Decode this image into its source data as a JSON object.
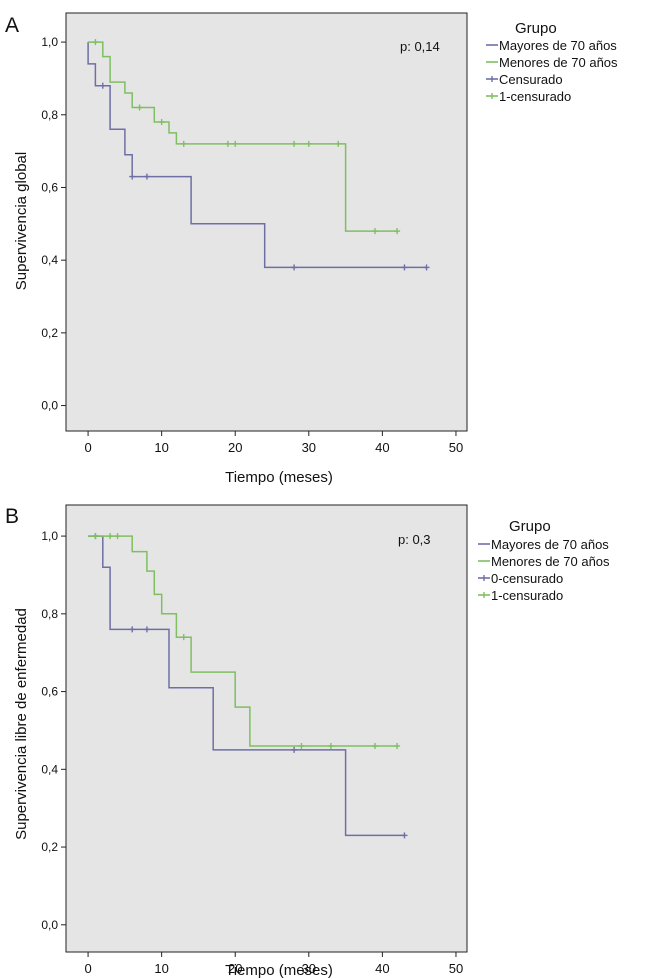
{
  "colors": {
    "plot_bg": "#e5e5e5",
    "frame": "#222222",
    "mayores": "#6f6fa6",
    "menores": "#7fbf62"
  },
  "chart_data": [
    {
      "type": "line",
      "panel_label": "A",
      "title": "",
      "xlabel": "Tiempo (meses)",
      "ylabel": "Supervivencia global",
      "xlim": [
        -3,
        51.5
      ],
      "ylim": [
        -0.07,
        1.08
      ],
      "xticks": [
        0,
        10,
        20,
        30,
        40,
        50
      ],
      "xtick_labels": [
        "0",
        "10",
        "20",
        "30",
        "40",
        "50"
      ],
      "yticks": [
        0.0,
        0.2,
        0.4,
        0.6,
        0.8,
        1.0
      ],
      "ytick_labels": [
        "0,0",
        "0,2",
        "0,4",
        "0,6",
        "0,8",
        "1,0"
      ],
      "annotation": "p: 0,14",
      "grid": false,
      "legend": {
        "title": "Grupo",
        "placement": "outside-right",
        "entries": [
          "Mayores de 70 años",
          "Menores de 70 años",
          "Censurado",
          "1-censurado"
        ]
      },
      "series": [
        {
          "name": "Mayores de 70 años",
          "color": "#6f6fa6",
          "step": [
            [
              0,
              1.0
            ],
            [
              0,
              0.94
            ],
            [
              1,
              0.94
            ],
            [
              1,
              0.88
            ],
            [
              3,
              0.88
            ],
            [
              3,
              0.76
            ],
            [
              5,
              0.76
            ],
            [
              5,
              0.69
            ],
            [
              6,
              0.69
            ],
            [
              6,
              0.63
            ],
            [
              14,
              0.63
            ],
            [
              14,
              0.5
            ],
            [
              24,
              0.5
            ],
            [
              24,
              0.38
            ],
            [
              46,
              0.38
            ]
          ],
          "censored": [
            [
              2,
              0.88
            ],
            [
              6,
              0.63
            ],
            [
              8,
              0.63
            ],
            [
              28,
              0.38
            ],
            [
              43,
              0.38
            ],
            [
              46,
              0.38
            ]
          ]
        },
        {
          "name": "Menores de 70 años",
          "color": "#7fbf62",
          "step": [
            [
              0,
              1.0
            ],
            [
              2,
              1.0
            ],
            [
              2,
              0.96
            ],
            [
              3,
              0.96
            ],
            [
              3,
              0.89
            ],
            [
              5,
              0.89
            ],
            [
              5,
              0.86
            ],
            [
              6,
              0.86
            ],
            [
              6,
              0.82
            ],
            [
              9,
              0.82
            ],
            [
              9,
              0.78
            ],
            [
              11,
              0.78
            ],
            [
              11,
              0.75
            ],
            [
              12,
              0.75
            ],
            [
              12,
              0.72
            ],
            [
              35,
              0.72
            ],
            [
              35,
              0.48
            ],
            [
              42,
              0.48
            ]
          ],
          "censored": [
            [
              1,
              1.0
            ],
            [
              7,
              0.82
            ],
            [
              10,
              0.78
            ],
            [
              13,
              0.72
            ],
            [
              19,
              0.72
            ],
            [
              20,
              0.72
            ],
            [
              28,
              0.72
            ],
            [
              30,
              0.72
            ],
            [
              34,
              0.72
            ],
            [
              39,
              0.48
            ],
            [
              42,
              0.48
            ]
          ]
        }
      ]
    },
    {
      "type": "line",
      "panel_label": "B",
      "title": "",
      "xlabel": "Tiempo (meses)",
      "ylabel": "Supervivencia libre de enfermedad",
      "xlim": [
        -3,
        51.5
      ],
      "ylim": [
        -0.07,
        1.08
      ],
      "xticks": [
        0,
        10,
        20,
        30,
        40,
        50
      ],
      "xtick_labels": [
        "0",
        "10",
        "20",
        "30",
        "40",
        "50"
      ],
      "yticks": [
        0.0,
        0.2,
        0.4,
        0.6,
        0.8,
        1.0
      ],
      "ytick_labels": [
        "0,0",
        "0,2",
        "0,4",
        "0,6",
        "0,8",
        "1,0"
      ],
      "annotation": "p: 0,3",
      "grid": false,
      "legend": {
        "title": "Grupo",
        "placement": "outside-right",
        "entries": [
          "Mayores de 70 años",
          "Menores de 70 años",
          "0-censurado",
          "1-censurado"
        ]
      },
      "series": [
        {
          "name": "Mayores de 70 años",
          "color": "#6f6fa6",
          "step": [
            [
              0,
              1.0
            ],
            [
              2,
              1.0
            ],
            [
              2,
              0.92
            ],
            [
              3,
              0.92
            ],
            [
              3,
              0.76
            ],
            [
              11,
              0.76
            ],
            [
              11,
              0.61
            ],
            [
              17,
              0.61
            ],
            [
              17,
              0.45
            ],
            [
              35,
              0.45
            ],
            [
              35,
              0.23
            ],
            [
              43,
              0.23
            ]
          ],
          "censored": [
            [
              1,
              1.0
            ],
            [
              6,
              0.76
            ],
            [
              8,
              0.76
            ],
            [
              28,
              0.45
            ],
            [
              43,
              0.23
            ]
          ]
        },
        {
          "name": "Menores de 70 años",
          "color": "#7fbf62",
          "step": [
            [
              0,
              1.0
            ],
            [
              6,
              1.0
            ],
            [
              6,
              0.96
            ],
            [
              8,
              0.96
            ],
            [
              8,
              0.91
            ],
            [
              9,
              0.91
            ],
            [
              9,
              0.85
            ],
            [
              10,
              0.85
            ],
            [
              10,
              0.8
            ],
            [
              12,
              0.8
            ],
            [
              12,
              0.74
            ],
            [
              14,
              0.74
            ],
            [
              14,
              0.65
            ],
            [
              20,
              0.65
            ],
            [
              20,
              0.56
            ],
            [
              22,
              0.56
            ],
            [
              22,
              0.46
            ],
            [
              42,
              0.46
            ]
          ],
          "censored": [
            [
              1,
              1.0
            ],
            [
              3,
              1.0
            ],
            [
              4,
              1.0
            ],
            [
              13,
              0.74
            ],
            [
              29,
              0.46
            ],
            [
              33,
              0.46
            ],
            [
              39,
              0.46
            ],
            [
              42,
              0.46
            ]
          ]
        }
      ]
    }
  ]
}
